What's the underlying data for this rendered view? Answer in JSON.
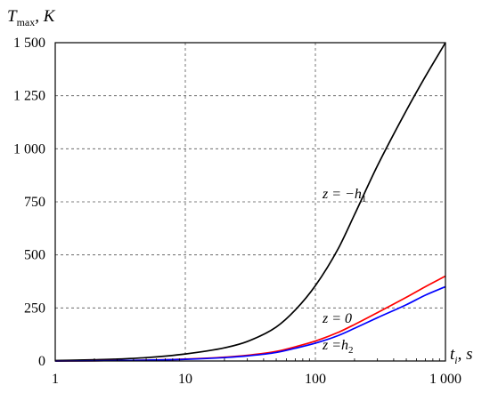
{
  "chart_data": {
    "type": "line",
    "title": "",
    "ylabel": {
      "main": "T",
      "sub": "max",
      "rest": ", K"
    },
    "xlabel": {
      "main": "t",
      "sub": "i",
      "rest": ", s"
    },
    "xscale": "log",
    "xlim": [
      1,
      1000
    ],
    "ylim": [
      0,
      1500
    ],
    "grid": true,
    "xticks": [
      1,
      10,
      100,
      1000
    ],
    "xtick_labels": [
      "1",
      "10",
      "100",
      "1 000"
    ],
    "yticks": [
      0,
      250,
      500,
      750,
      1000,
      1250,
      1500
    ],
    "ytick_labels": [
      "0",
      "250",
      "500",
      "750",
      "1 000",
      "1 250",
      "1 500"
    ],
    "series": [
      {
        "color": "#000000",
        "x": [
          1,
          2,
          3,
          5,
          10,
          20,
          30,
          50,
          70,
          100,
          150,
          200,
          300,
          500,
          700,
          1000
        ],
        "y": [
          2,
          6,
          9,
          16,
          33,
          62,
          92,
          160,
          240,
          355,
          530,
          690,
          920,
          1180,
          1340,
          1500
        ]
      },
      {
        "color": "#ff0000",
        "x": [
          1,
          2,
          3,
          5,
          10,
          20,
          30,
          50,
          70,
          100,
          150,
          200,
          300,
          500,
          700,
          1000
        ],
        "y": [
          0,
          1,
          2,
          4,
          9,
          18,
          27,
          45,
          67,
          94,
          135,
          172,
          228,
          300,
          350,
          400
        ]
      },
      {
        "color": "#0000ff",
        "x": [
          1,
          2,
          3,
          5,
          10,
          20,
          30,
          50,
          70,
          100,
          150,
          200,
          300,
          500,
          700,
          1000
        ],
        "y": [
          0,
          1,
          2,
          4,
          8,
          16,
          24,
          40,
          60,
          84,
          120,
          154,
          204,
          265,
          310,
          350
        ]
      }
    ],
    "annotations": [
      {
        "prefix": "z = −",
        "var": "h",
        "sub": "1"
      },
      {
        "prefix": "z = 0",
        "var": "",
        "sub": ""
      },
      {
        "prefix": "z =",
        "var": "h",
        "sub": "2"
      }
    ]
  }
}
